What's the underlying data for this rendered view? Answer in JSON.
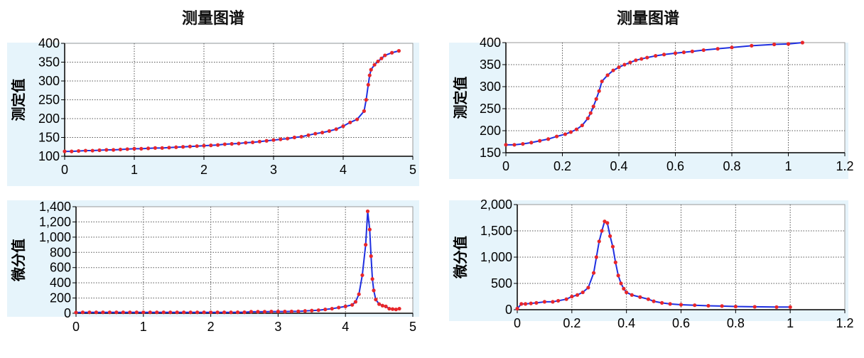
{
  "titles": {
    "left": "测量图谱",
    "right": "测量图谱"
  },
  "colors": {
    "line": "#1f2fe0",
    "marker": "#e8262a",
    "bg": "#e6f4fb",
    "plot_bg": "#ffffff",
    "grid": "#555555"
  },
  "chart_data": [
    {
      "id": "top_left",
      "type": "line",
      "title": "测量图谱",
      "ylabel": "测定值",
      "xlabel": "",
      "xlim": [
        0,
        5
      ],
      "ylim": [
        100,
        400
      ],
      "xticks": [
        0,
        1,
        2,
        3,
        4,
        5
      ],
      "yticks": [
        100,
        150,
        200,
        250,
        300,
        350,
        400
      ],
      "ytick_labels": [
        "100",
        "150",
        "200",
        "250",
        "300",
        "350",
        "400"
      ],
      "grid": true,
      "series": [
        {
          "x": [
            0,
            0.1,
            0.2,
            0.3,
            0.4,
            0.5,
            0.6,
            0.7,
            0.8,
            0.9,
            1.0,
            1.1,
            1.2,
            1.3,
            1.4,
            1.5,
            1.6,
            1.7,
            1.8,
            1.9,
            2.0,
            2.1,
            2.2,
            2.3,
            2.4,
            2.5,
            2.6,
            2.7,
            2.8,
            2.9,
            3.0,
            3.1,
            3.2,
            3.3,
            3.4,
            3.5,
            3.6,
            3.7,
            3.8,
            3.9,
            4.0,
            4.1,
            4.2,
            4.3,
            4.33,
            4.36,
            4.38,
            4.4,
            4.45,
            4.5,
            4.55,
            4.6,
            4.7,
            4.8
          ],
          "y": [
            113,
            113,
            114,
            115,
            115,
            116,
            117,
            117,
            118,
            119,
            120,
            120,
            121,
            122,
            122,
            123,
            124,
            125,
            126,
            127,
            128,
            129,
            130,
            132,
            133,
            134,
            136,
            137,
            139,
            141,
            143,
            145,
            147,
            150,
            152,
            156,
            160,
            163,
            167,
            172,
            180,
            190,
            198,
            220,
            250,
            290,
            315,
            330,
            343,
            352,
            360,
            368,
            375,
            380
          ]
        }
      ]
    },
    {
      "id": "bottom_left",
      "type": "line",
      "title": "",
      "ylabel": "微分值",
      "xlabel": "",
      "xlim": [
        0,
        5
      ],
      "ylim": [
        0,
        1400
      ],
      "xticks": [
        0,
        1,
        2,
        3,
        4,
        5
      ],
      "yticks": [
        0,
        200,
        400,
        600,
        800,
        1000,
        1200,
        1400
      ],
      "ytick_labels": [
        "0",
        "200",
        "400",
        "600",
        "800",
        "1,000",
        "1,200",
        "1,400"
      ],
      "grid": true,
      "series": [
        {
          "x": [
            0,
            0.1,
            0.2,
            0.3,
            0.4,
            0.5,
            0.6,
            0.7,
            0.8,
            0.9,
            1.0,
            1.1,
            1.2,
            1.3,
            1.4,
            1.5,
            1.6,
            1.7,
            1.8,
            1.9,
            2.0,
            2.1,
            2.2,
            2.3,
            2.4,
            2.5,
            2.6,
            2.7,
            2.8,
            2.9,
            3.0,
            3.1,
            3.2,
            3.3,
            3.4,
            3.5,
            3.6,
            3.7,
            3.8,
            3.9,
            4.0,
            4.1,
            4.15,
            4.2,
            4.25,
            4.3,
            4.33,
            4.36,
            4.38,
            4.4,
            4.42,
            4.45,
            4.5,
            4.55,
            4.6,
            4.65,
            4.7,
            4.75,
            4.8
          ],
          "y": [
            10,
            12,
            12,
            12,
            12,
            12,
            12,
            12,
            12,
            12,
            12,
            12,
            12,
            12,
            12,
            12,
            12,
            12,
            12,
            12,
            12,
            12,
            12,
            12,
            13,
            13,
            20,
            20,
            20,
            22,
            22,
            22,
            24,
            25,
            30,
            35,
            40,
            50,
            60,
            75,
            90,
            110,
            150,
            250,
            500,
            900,
            1340,
            1100,
            750,
            450,
            300,
            180,
            120,
            100,
            90,
            60,
            55,
            50,
            60
          ]
        }
      ]
    },
    {
      "id": "top_right",
      "type": "line",
      "title": "测量图谱",
      "ylabel": "测定值",
      "xlabel": "",
      "xlim": [
        0,
        1.2
      ],
      "ylim": [
        150,
        400
      ],
      "xticks": [
        0,
        0.2,
        0.4,
        0.6,
        0.8,
        1.0,
        1.2
      ],
      "xtick_labels": [
        "0",
        "0.2",
        "0.4",
        "0.6",
        "0.8",
        "1",
        "1.2"
      ],
      "yticks": [
        150,
        200,
        250,
        300,
        350,
        400
      ],
      "ytick_labels": [
        "150",
        "200",
        "250",
        "300",
        "350",
        "400"
      ],
      "grid": true,
      "series": [
        {
          "x": [
            0,
            0.03,
            0.06,
            0.09,
            0.12,
            0.15,
            0.18,
            0.21,
            0.23,
            0.25,
            0.27,
            0.29,
            0.3,
            0.31,
            0.32,
            0.33,
            0.34,
            0.36,
            0.38,
            0.4,
            0.42,
            0.44,
            0.46,
            0.48,
            0.5,
            0.53,
            0.56,
            0.6,
            0.63,
            0.66,
            0.7,
            0.75,
            0.8,
            0.87,
            0.95,
            1.0,
            1.05
          ],
          "y": [
            168,
            168,
            170,
            173,
            177,
            181,
            187,
            192,
            197,
            203,
            212,
            228,
            240,
            255,
            272,
            290,
            312,
            326,
            337,
            344,
            350,
            355,
            360,
            363,
            366,
            370,
            373,
            376,
            378,
            380,
            383,
            386,
            389,
            393,
            396,
            397,
            400
          ]
        }
      ]
    },
    {
      "id": "bottom_right",
      "type": "line",
      "title": "",
      "ylabel": "微分值",
      "xlabel": "",
      "xlim": [
        0,
        1.2
      ],
      "ylim": [
        0,
        2000
      ],
      "xticks": [
        0,
        0.2,
        0.4,
        0.6,
        0.8,
        1.0,
        1.2
      ],
      "xtick_labels": [
        "0",
        "0.2",
        "0.4",
        "0.6",
        "0.8",
        "1",
        "1.2"
      ],
      "yticks": [
        0,
        500,
        1000,
        1500,
        2000
      ],
      "ytick_labels": [
        "0",
        "500",
        "1,000",
        "1,500",
        "2,000"
      ],
      "grid": true,
      "series": [
        {
          "x": [
            0,
            0.015,
            0.03,
            0.05,
            0.07,
            0.1,
            0.13,
            0.15,
            0.18,
            0.2,
            0.22,
            0.24,
            0.26,
            0.28,
            0.29,
            0.3,
            0.31,
            0.32,
            0.33,
            0.34,
            0.35,
            0.36,
            0.37,
            0.38,
            0.39,
            0.4,
            0.42,
            0.45,
            0.48,
            0.5,
            0.53,
            0.56,
            0.6,
            0.65,
            0.7,
            0.75,
            0.8,
            0.87,
            0.95,
            1.0
          ],
          "y": [
            20,
            110,
            110,
            120,
            130,
            150,
            150,
            170,
            200,
            250,
            280,
            330,
            420,
            700,
            1000,
            1300,
            1500,
            1680,
            1650,
            1400,
            1200,
            900,
            650,
            500,
            400,
            330,
            280,
            240,
            200,
            160,
            130,
            110,
            95,
            85,
            75,
            70,
            60,
            55,
            50,
            50
          ]
        }
      ]
    }
  ]
}
